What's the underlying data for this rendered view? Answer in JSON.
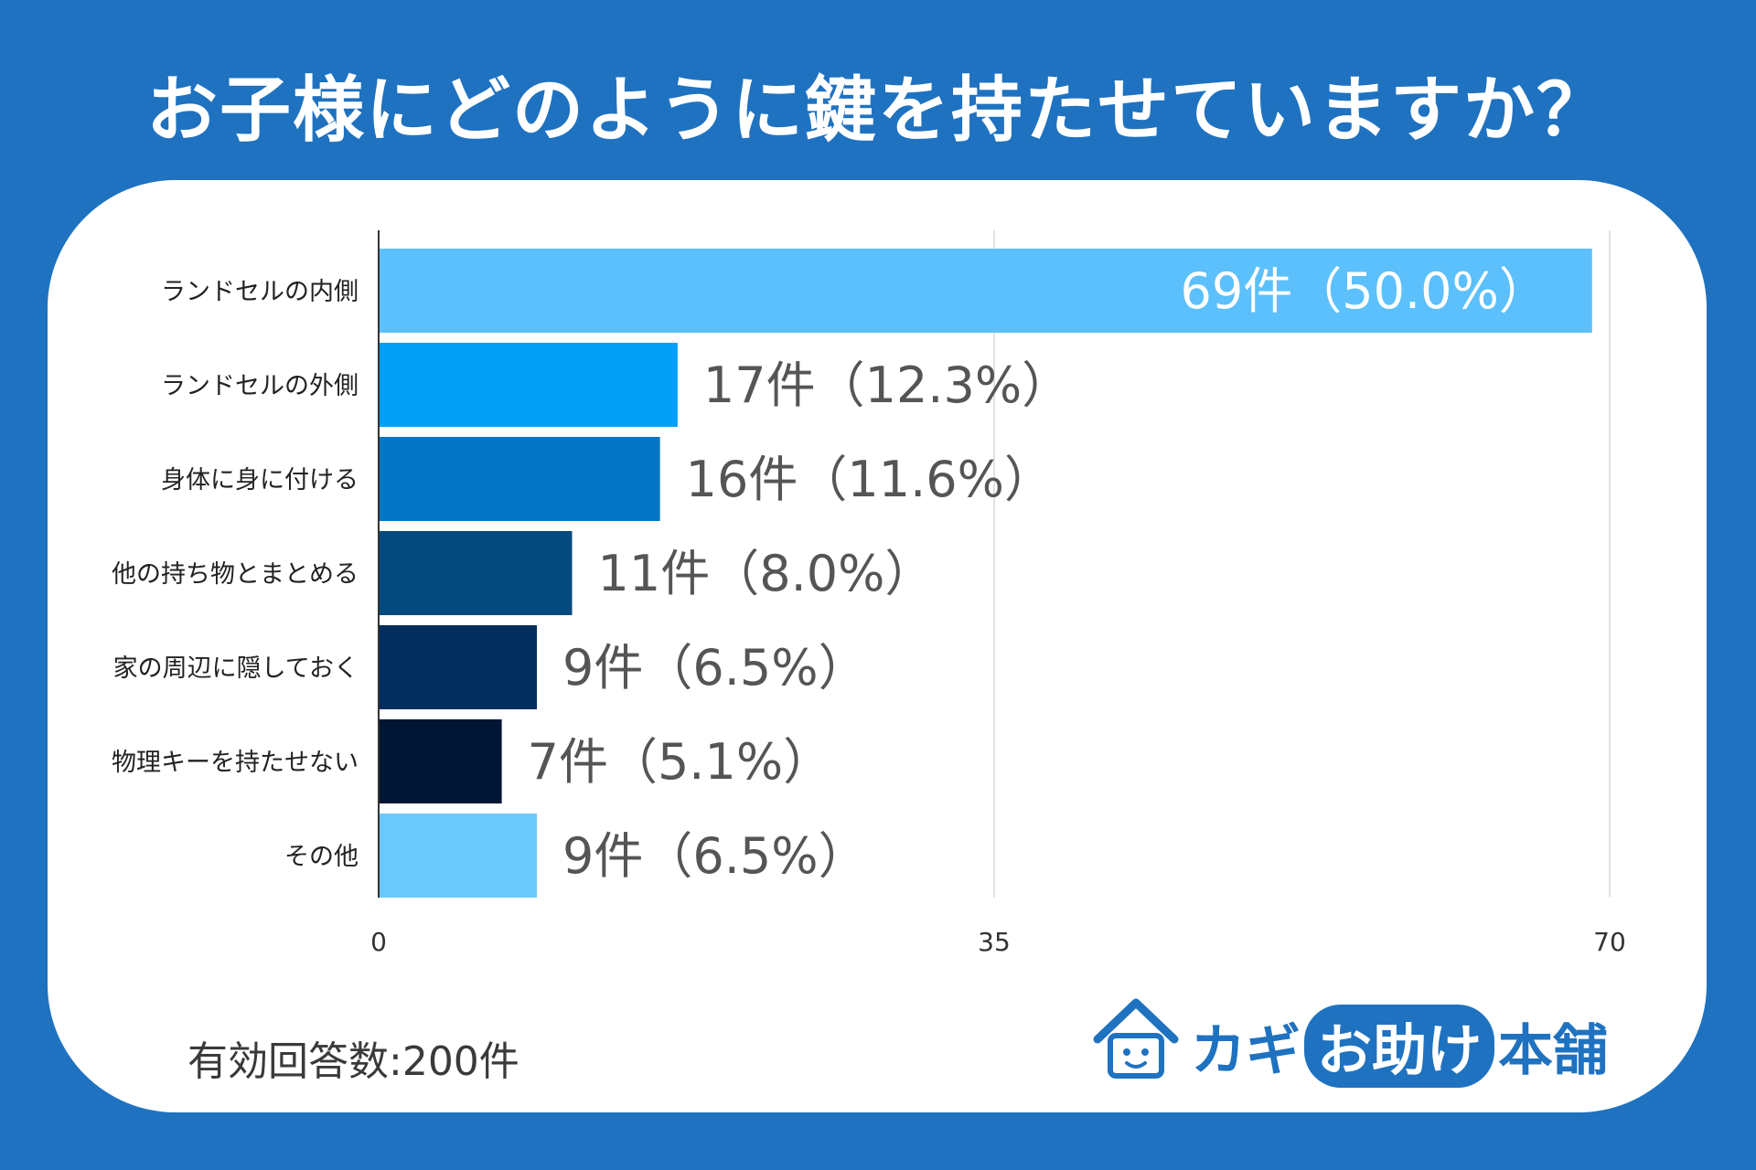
{
  "title": "お子様にどのように鍵を持たせていますか？",
  "footnote": "有効回答数:200件",
  "logo": {
    "part1": "カギ",
    "part2": "お助け",
    "part3": "本舗",
    "icon": "house-face-icon",
    "color": "#1f72c0"
  },
  "chart_data": {
    "type": "bar",
    "orientation": "horizontal",
    "title": "お子様にどのように鍵を持たせていますか？",
    "xlim": [
      0,
      70
    ],
    "xticks": [
      "0",
      "35",
      "70"
    ],
    "categories": [
      "ランドセルの内側",
      "ランドセルの外側",
      "身体に身に付ける",
      "他の持ち物とまとめる",
      "家の周辺に隠しておく",
      "物理キーを持たせない",
      "その他"
    ],
    "values": [
      69,
      17,
      16,
      11,
      9,
      7,
      9
    ],
    "percents": [
      50.0,
      12.3,
      11.6,
      8.0,
      6.5,
      5.1,
      6.5
    ],
    "labels": [
      "69件（50.0%）",
      "17件（12.3%）",
      "16件（11.6%）",
      "11件（8.0%）",
      "9件（6.5%）",
      "7件（5.1%）",
      "9件（6.5%）"
    ],
    "colors": [
      "#5bc0fb",
      "#03a0f7",
      "#0575c5",
      "#034b7e",
      "#022d5c",
      "#011634",
      "#6ac8fc"
    ],
    "grid": true
  }
}
